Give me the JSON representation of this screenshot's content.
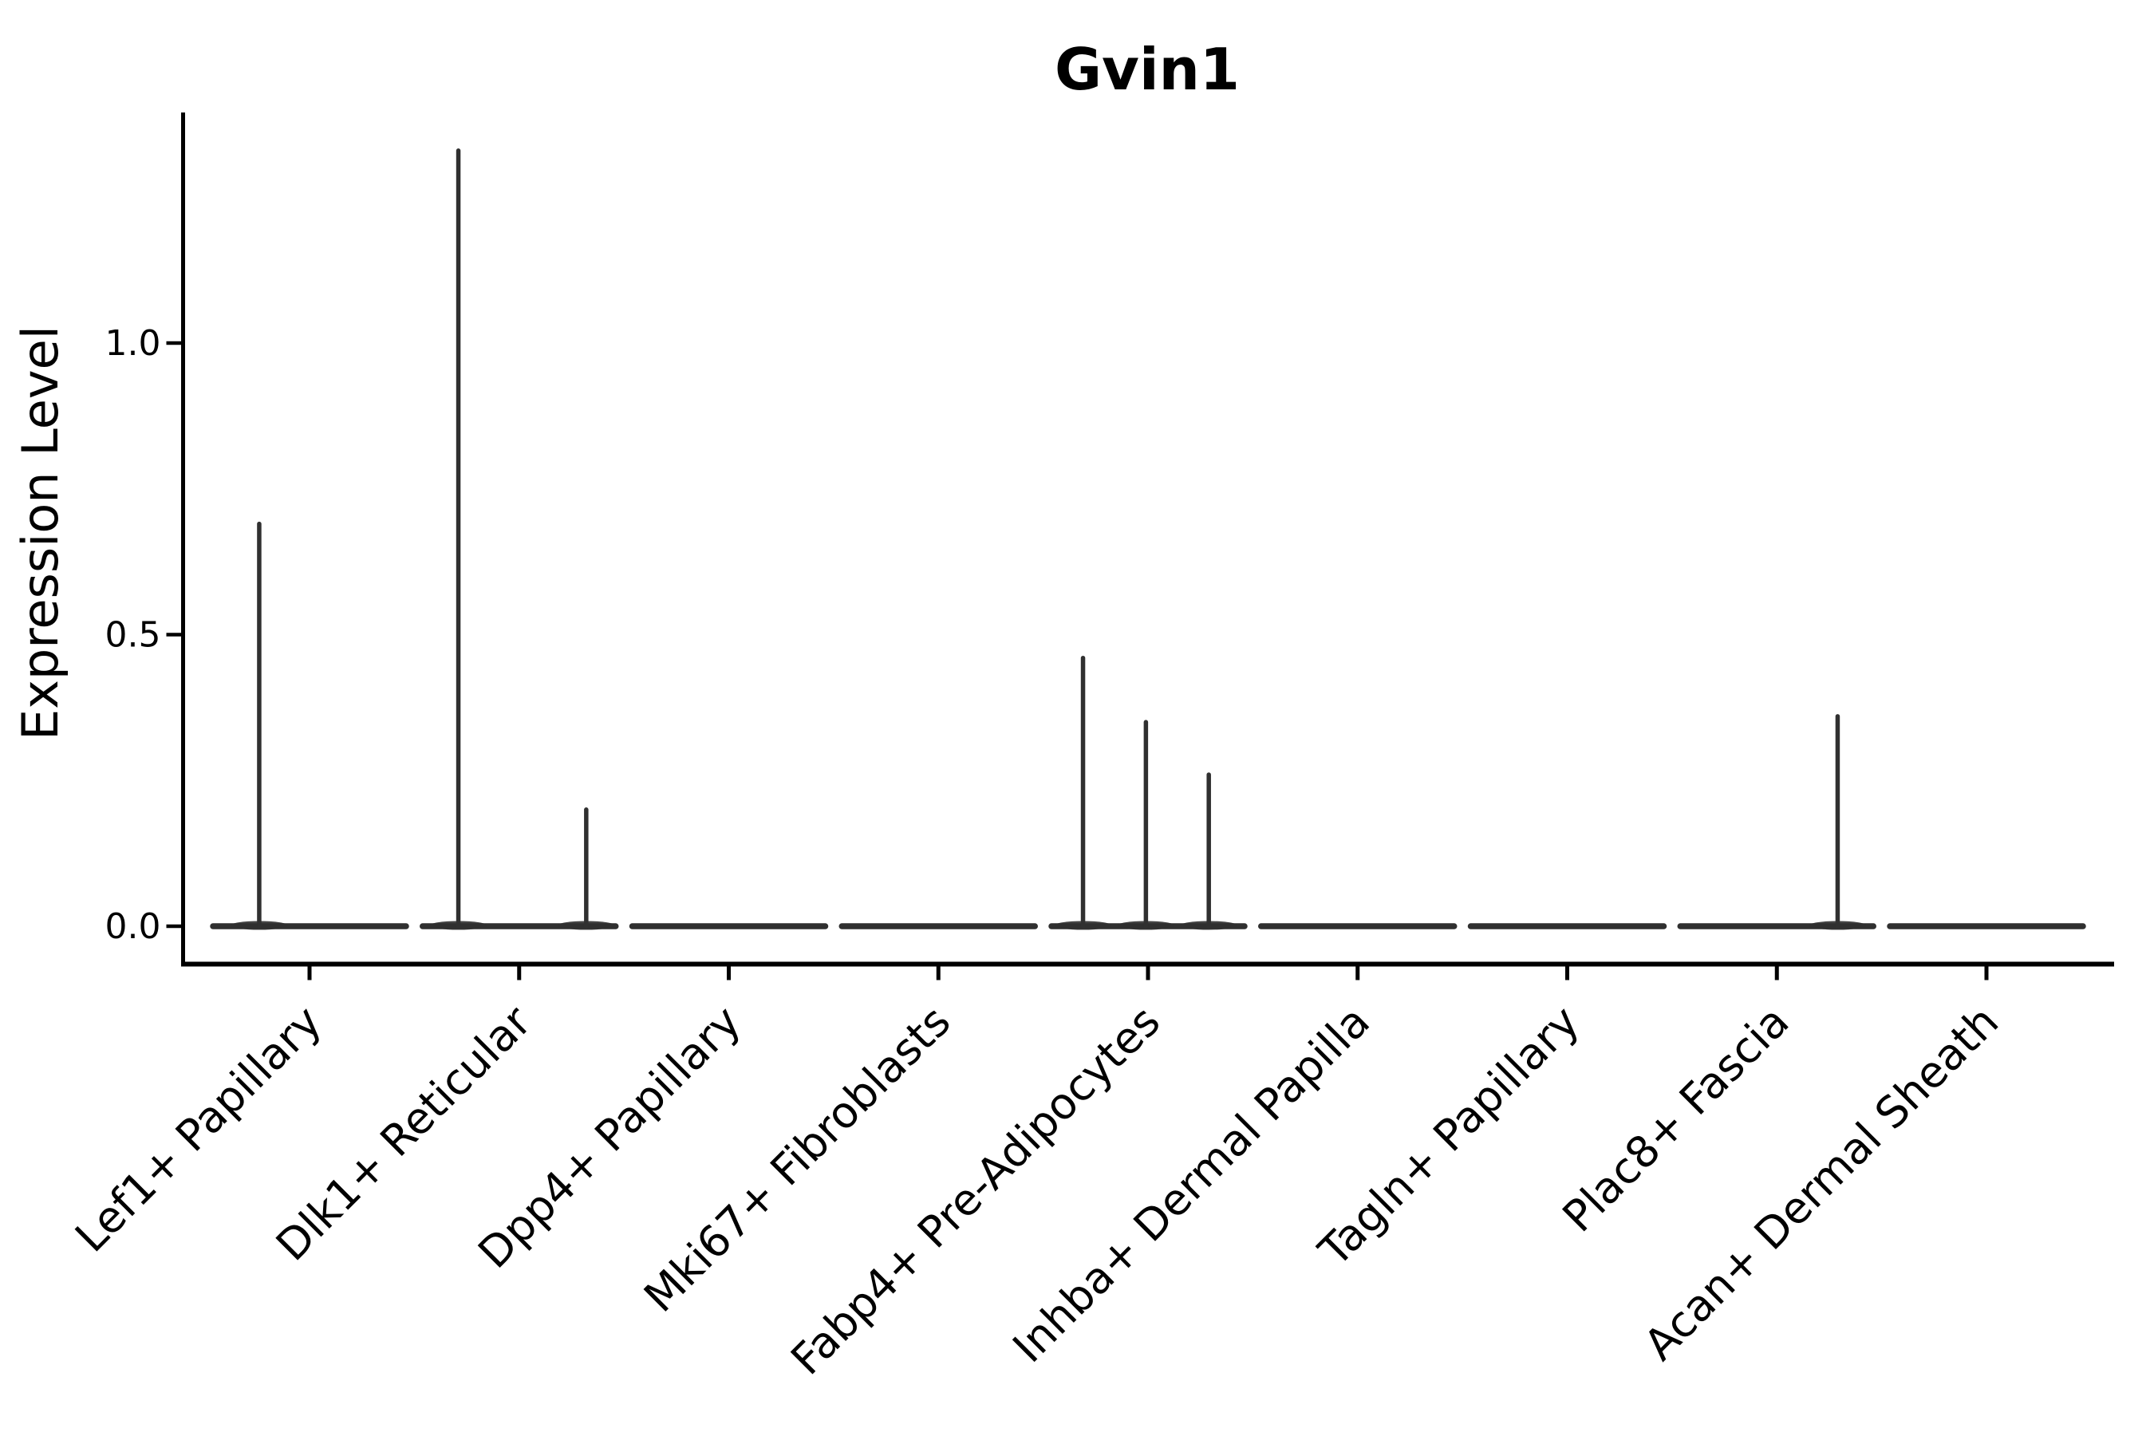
{
  "title": "Gvin1",
  "colors": {
    "background": "#ffffff",
    "axis": "#000000",
    "text": "#000000",
    "violin_stroke": "#303030"
  },
  "chart_data": {
    "type": "violin",
    "title": "Gvin1",
    "xlabel": "",
    "ylabel": "Expression Level",
    "ylim": [
      0,
      1.4
    ],
    "grid": false,
    "legend": "none",
    "x_tick_rotation_deg": 45,
    "yticks": [
      {
        "value": 0.0,
        "label": "0.0"
      },
      {
        "value": 0.5,
        "label": "0.5"
      },
      {
        "value": 1.0,
        "label": "1.0"
      }
    ],
    "categories": [
      "Lef1+ Papillary",
      "Dlk1+ Reticular",
      "Dpp4+ Papillary",
      "Mki67+ Fibroblasts",
      "Fabp4+ Pre-Adipocytes",
      "Inhba+ Dermal Papilla",
      "Tagln+ Papillary",
      "Plac8+ Fascia",
      "Acan+ Dermal Sheath"
    ],
    "violins": [
      {
        "category": "Lef1+ Papillary",
        "baseline_value": 0.0,
        "spikes": [
          {
            "offset": -0.24,
            "value": 0.69
          }
        ]
      },
      {
        "category": "Dlk1+ Reticular",
        "baseline_value": 0.0,
        "spikes": [
          {
            "offset": -0.29,
            "value": 1.33
          },
          {
            "offset": 0.32,
            "value": 0.2
          }
        ]
      },
      {
        "category": "Dpp4+ Papillary",
        "baseline_value": 0.0,
        "spikes": []
      },
      {
        "category": "Mki67+ Fibroblasts",
        "baseline_value": 0.0,
        "spikes": []
      },
      {
        "category": "Fabp4+ Pre-Adipocytes",
        "baseline_value": 0.0,
        "spikes": [
          {
            "offset": -0.31,
            "value": 0.46
          },
          {
            "offset": -0.01,
            "value": 0.35
          },
          {
            "offset": 0.29,
            "value": 0.26
          }
        ]
      },
      {
        "category": "Inhba+ Dermal Papilla",
        "baseline_value": 0.0,
        "spikes": []
      },
      {
        "category": "Tagln+ Papillary",
        "baseline_value": 0.0,
        "spikes": []
      },
      {
        "category": "Plac8+ Fascia",
        "baseline_value": 0.0,
        "spikes": [
          {
            "offset": 0.29,
            "value": 0.36
          }
        ]
      },
      {
        "category": "Acan+ Dermal Sheath",
        "baseline_value": 0.0,
        "spikes": []
      }
    ]
  }
}
